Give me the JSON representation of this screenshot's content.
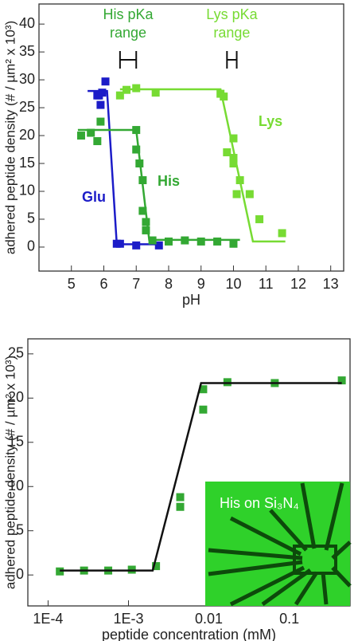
{
  "chart_data": [
    {
      "type": "scatter",
      "x_label": "pH",
      "y_label": "adhered peptide density (# / µm² x 10³)",
      "xlim": [
        4,
        13.4
      ],
      "xticks": [
        5,
        6,
        7,
        8,
        9,
        10,
        11,
        12,
        13
      ],
      "ylim": [
        -4.3,
        43.6
      ],
      "yticks": [
        0,
        5,
        10,
        15,
        20,
        25,
        30,
        35,
        40
      ],
      "series": [
        {
          "name": "Glu",
          "color": "#1c1cc8",
          "x": [
            5.8,
            5.85,
            5.95,
            5.9,
            6.05,
            6.4,
            6.5,
            7.0,
            7.7
          ],
          "values": [
            27.2,
            27.2,
            27.7,
            25.5,
            29.7,
            0.6,
            0.6,
            0.3,
            0.3
          ],
          "fit": {
            "x": [
              5.5,
              6.1,
              6.4,
              7.8
            ],
            "values": [
              28,
              28,
              0.5,
              0.5
            ]
          }
        },
        {
          "name": "His",
          "color": "#33a833",
          "x": [
            5.3,
            5.6,
            5.8,
            5.9,
            7.0,
            7.0,
            7.1,
            7.2,
            7.2,
            7.3,
            7.3,
            7.5,
            8.0,
            8.5,
            9.0,
            9.5,
            10.0
          ],
          "values": [
            20,
            20.5,
            19,
            22.5,
            21,
            17.5,
            15,
            12,
            6.5,
            4.5,
            3,
            1.2,
            1,
            1.2,
            1,
            1,
            0.6
          ],
          "fit": {
            "x": [
              5.2,
              7.0,
              7.4,
              10.2
            ],
            "values": [
              21,
              21,
              1.3,
              1.3
            ]
          }
        },
        {
          "name": "Lys",
          "color": "#77db33",
          "x": [
            6.5,
            6.7,
            7.0,
            7.6,
            9.6,
            9.7,
            10.0,
            9.8,
            10.0,
            10.0,
            10.2,
            10.1,
            10.5,
            10.8,
            11.5
          ],
          "values": [
            27.2,
            28.2,
            28.5,
            27.7,
            27.5,
            27,
            19.5,
            17,
            16,
            15,
            12,
            9.5,
            9.5,
            5,
            2.5
          ],
          "fit": {
            "x": [
              6.5,
              9.6,
              10.6,
              11.6
            ],
            "values": [
              28.3,
              28.3,
              1,
              1
            ]
          }
        }
      ],
      "ranges": [
        {
          "lines": [
            "His pKa",
            "range"
          ],
          "color": "#33a833",
          "xmin": 6.5,
          "xmax": 7.0
        },
        {
          "lines": [
            "Lys pKa",
            "range"
          ],
          "color": "#77db33",
          "xmin": 9.8,
          "xmax": 10.1
        }
      ]
    },
    {
      "type": "scatter",
      "x_label": "peptide concentration (mM)",
      "y_label": "adhered peptide density (# / µm² x 10³)",
      "log_x": true,
      "xlim": [
        5.6e-05,
        0.57
      ],
      "xticks": [
        {
          "value": 0.0001,
          "label": "1E-4"
        },
        {
          "value": 0.001,
          "label": "1E-3"
        },
        0.01,
        0.1
      ],
      "ylim": [
        -3.5,
        26.7
      ],
      "yticks": [
        0,
        5,
        10,
        15,
        20,
        25
      ],
      "series": [
        {
          "name": "His",
          "color": "#33a833",
          "x": [
            0.00014,
            0.00028,
            0.00056,
            0.0011,
            0.0022,
            0.0044,
            0.0044,
            0.0085,
            0.0085,
            0.017,
            0.066,
            0.45
          ],
          "values": [
            0.4,
            0.5,
            0.5,
            0.6,
            1.0,
            8.8,
            7.7,
            21,
            18.7,
            21.8,
            21.7,
            22
          ],
          "fit": {
            "x": [
              0.00014,
              0.002,
              0.008,
              0.45
            ],
            "values": [
              0.5,
              0.5,
              21.7,
              21.7
            ],
            "color": "#111111"
          }
        }
      ],
      "inset_label": "His on Si₃N₄"
    }
  ]
}
